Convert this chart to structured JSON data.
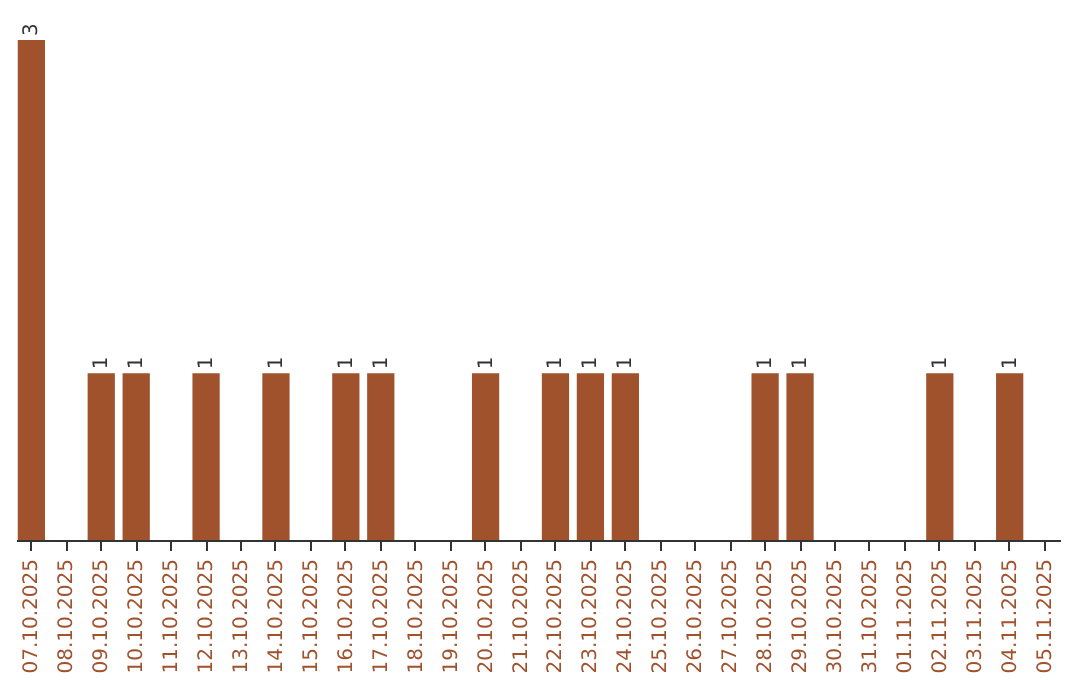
{
  "chart_data": {
    "type": "bar",
    "categories": [
      "07.10.2025",
      "08.10.2025",
      "09.10.2025",
      "10.10.2025",
      "11.10.2025",
      "12.10.2025",
      "13.10.2025",
      "14.10.2025",
      "15.10.2025",
      "16.10.2025",
      "17.10.2025",
      "18.10.2025",
      "19.10.2025",
      "20.10.2025",
      "21.10.2025",
      "22.10.2025",
      "23.10.2025",
      "24.10.2025",
      "25.10.2025",
      "26.10.2025",
      "27.10.2025",
      "28.10.2025",
      "29.10.2025",
      "30.10.2025",
      "31.10.2025",
      "01.11.2025",
      "02.11.2025",
      "03.11.2025",
      "04.11.2025",
      "05.11.2025"
    ],
    "values": [
      3,
      0,
      1,
      1,
      0,
      1,
      0,
      1,
      0,
      1,
      1,
      0,
      0,
      1,
      0,
      1,
      1,
      1,
      0,
      0,
      0,
      1,
      1,
      0,
      0,
      0,
      1,
      0,
      1,
      0
    ],
    "value_labels": [
      "3",
      null,
      "1",
      "1",
      null,
      "1",
      null,
      "1",
      null,
      "1",
      "1",
      null,
      null,
      "1",
      null,
      "1",
      "1",
      "1",
      null,
      null,
      null,
      "1",
      "1",
      null,
      null,
      null,
      "1",
      null,
      "1",
      null
    ],
    "color": "#a0522d"
  }
}
